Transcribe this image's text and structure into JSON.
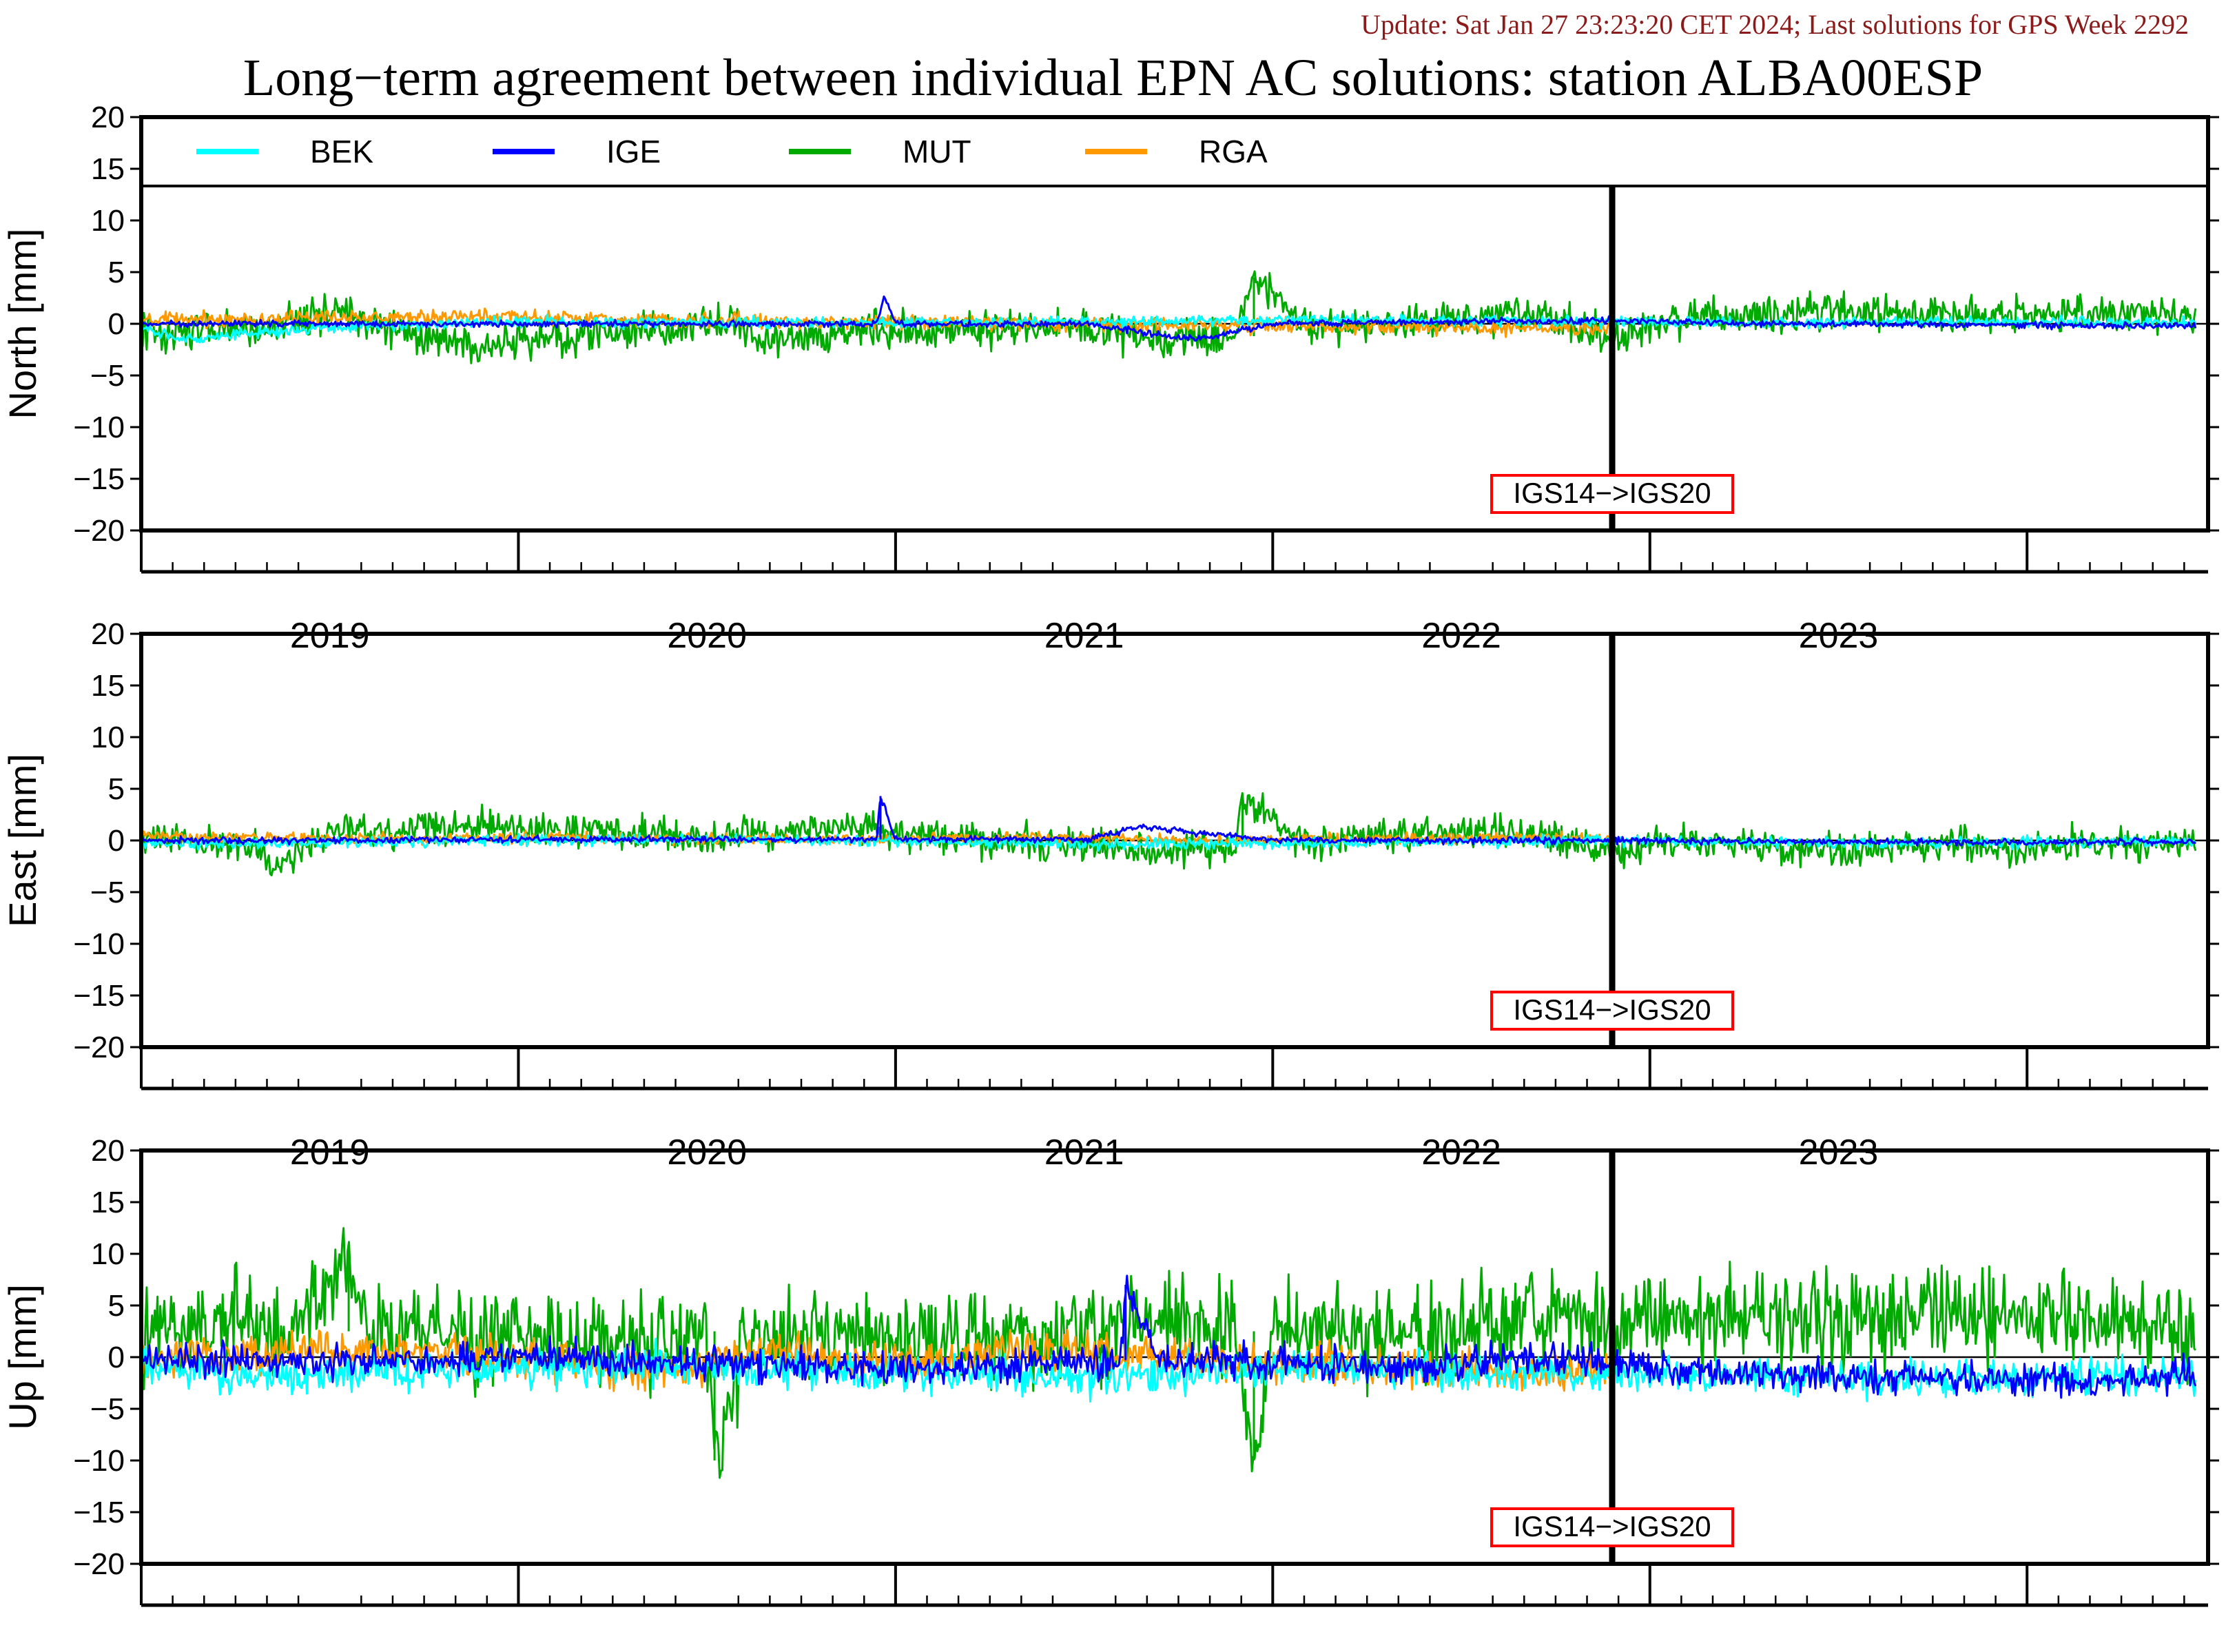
{
  "header": {
    "update_text": "Update: Sat Jan 27 23:23:20 CET 2024; Last solutions for GPS Week 2292",
    "title": "Long−term agreement between individual EPN AC solutions: station ALBA00ESP"
  },
  "colors": {
    "BEK": "#00ffff",
    "IGE": "#0000ff",
    "MUT": "#00aa00",
    "RGA": "#ff9900",
    "annotation_border": "#ff0000",
    "update_text": "#8b1a1a"
  },
  "chart_data": [
    {
      "type": "line",
      "panel": "north",
      "ylabel": "North [mm]",
      "ylim": [
        -20,
        20
      ],
      "yticks": [
        20,
        15,
        10,
        5,
        0,
        -5,
        -10,
        -15,
        -20
      ],
      "xlim": [
        2018.5,
        2023.98
      ],
      "xtick_labels": [
        "2019",
        "2020",
        "2021",
        "2022",
        "2023"
      ],
      "legend": {
        "placement": "top",
        "entries": [
          "BEK",
          "IGE",
          "MUT",
          "RGA"
        ]
      },
      "event": {
        "x": 2022.4,
        "label": "IGS14−>IGS20"
      },
      "series": [
        {
          "name": "BEK",
          "x": [
            2018.5,
            2018.6,
            2019.0,
            2019.5,
            2020.0,
            2020.5,
            2021.0,
            2021.5,
            2022.0,
            2022.4,
            2022.8,
            2023.4,
            2023.95
          ],
          "y": [
            -0.4,
            -1.5,
            -0.3,
            0.2,
            0.1,
            0.1,
            0.2,
            0.4,
            0.3,
            0.2,
            0.1,
            0.2,
            0.1
          ]
        },
        {
          "name": "IGE",
          "x": [
            2018.5,
            2019.0,
            2019.5,
            2020.0,
            2020.45,
            2020.47,
            2020.5,
            2021.0,
            2021.3,
            2021.5,
            2022.0,
            2022.4,
            2022.8,
            2023.4,
            2023.95
          ],
          "y": [
            0.0,
            0.0,
            0.0,
            0.0,
            0.0,
            2.7,
            0.0,
            0.0,
            -1.5,
            0.0,
            0.2,
            0.3,
            0.0,
            -0.1,
            -0.2
          ]
        },
        {
          "name": "MUT",
          "x": [
            2018.5,
            2018.8,
            2019.0,
            2019.2,
            2019.4,
            2019.6,
            2019.8,
            2020.0,
            2020.2,
            2020.4,
            2020.6,
            2020.8,
            2021.0,
            2021.2,
            2021.4,
            2021.45,
            2021.6,
            2021.8,
            2022.0,
            2022.2,
            2022.4,
            2022.6,
            2022.8,
            2023.0,
            2023.2,
            2023.4,
            2023.6,
            2023.8,
            2023.95
          ],
          "y": [
            -0.8,
            -0.7,
            1.5,
            -1.0,
            -2.5,
            -1.2,
            -0.8,
            0.2,
            -1.5,
            -0.5,
            -0.8,
            -0.3,
            -0.2,
            -1.6,
            -1.2,
            4.5,
            -0.5,
            -0.4,
            0.8,
            1.0,
            -1.5,
            0.8,
            1.0,
            1.2,
            1.0,
            0.8,
            0.9,
            1.1,
            0.7
          ]
        },
        {
          "name": "RGA",
          "x": [
            2018.5,
            2018.8,
            2019.0,
            2019.3,
            2019.6,
            2019.9,
            2020.2,
            2020.5,
            2020.8,
            2021.0,
            2021.3,
            2021.6,
            2021.9,
            2022.2,
            2022.4
          ],
          "y": [
            0.3,
            0.5,
            0.6,
            0.7,
            0.6,
            0.4,
            0.2,
            0.1,
            0.0,
            0.0,
            -0.1,
            -0.2,
            -0.3,
            -0.5,
            -0.3
          ]
        }
      ]
    },
    {
      "type": "line",
      "panel": "east",
      "ylabel": "East [mm]",
      "ylim": [
        -20,
        20
      ],
      "yticks": [
        20,
        15,
        10,
        5,
        0,
        -5,
        -10,
        -15,
        -20
      ],
      "xlim": [
        2018.5,
        2023.98
      ],
      "xtick_labels": [
        "2019",
        "2020",
        "2021",
        "2022",
        "2023"
      ],
      "event": {
        "x": 2022.4,
        "label": "IGS14−>IGS20"
      },
      "series": [
        {
          "name": "BEK",
          "x": [
            2018.5,
            2019.0,
            2019.5,
            2020.0,
            2020.5,
            2021.0,
            2021.5,
            2022.0,
            2022.4,
            2022.8,
            2023.4,
            2023.95
          ],
          "y": [
            -0.3,
            -0.2,
            0.0,
            0.1,
            -0.1,
            -0.4,
            -0.3,
            -0.1,
            0.0,
            -0.2,
            -0.2,
            -0.1
          ]
        },
        {
          "name": "IGE",
          "x": [
            2018.5,
            2019.0,
            2019.5,
            2020.0,
            2020.45,
            2020.46,
            2020.5,
            2021.0,
            2021.15,
            2021.5,
            2022.0,
            2022.4,
            2022.8,
            2023.4,
            2023.95
          ],
          "y": [
            0.0,
            0.0,
            0.1,
            0.1,
            0.1,
            4.3,
            0.1,
            0.1,
            1.3,
            0.0,
            0.0,
            0.0,
            -0.1,
            -0.2,
            -0.1
          ]
        },
        {
          "name": "MUT",
          "x": [
            2018.5,
            2018.8,
            2018.85,
            2019.0,
            2019.2,
            2019.4,
            2019.6,
            2019.8,
            2020.0,
            2020.2,
            2020.4,
            2020.6,
            2020.8,
            2021.0,
            2021.2,
            2021.4,
            2021.42,
            2021.6,
            2021.8,
            2022.0,
            2022.2,
            2022.4,
            2022.6,
            2022.8,
            2023.0,
            2023.2,
            2023.4,
            2023.6,
            2023.8,
            2023.95
          ],
          "y": [
            0.2,
            -0.3,
            -2.8,
            0.8,
            1.0,
            1.4,
            1.2,
            0.8,
            0.2,
            1.0,
            1.2,
            0.4,
            0.0,
            -0.5,
            -0.8,
            -0.6,
            3.9,
            -0.4,
            0.4,
            0.8,
            0.9,
            -1.2,
            0.3,
            -0.6,
            -0.7,
            -0.5,
            -0.6,
            -0.5,
            -0.4,
            -0.2
          ]
        },
        {
          "name": "RGA",
          "x": [
            2018.5,
            2018.8,
            2019.0,
            2019.3,
            2019.6,
            2019.9,
            2020.2,
            2020.5,
            2020.8,
            2021.0,
            2021.3,
            2021.6,
            2021.9,
            2022.2,
            2022.4
          ],
          "y": [
            0.4,
            0.3,
            0.1,
            0.2,
            0.3,
            0.2,
            0.1,
            0.2,
            0.3,
            0.2,
            0.0,
            0.1,
            0.2,
            0.3,
            0.2
          ]
        }
      ]
    },
    {
      "type": "line",
      "panel": "up",
      "ylabel": "Up [mm]",
      "ylim": [
        -20,
        20
      ],
      "yticks": [
        20,
        15,
        10,
        5,
        0,
        -5,
        -10,
        -15,
        -20
      ],
      "xlim": [
        2018.5,
        2023.98
      ],
      "xtick_labels": [
        "2019",
        "2020",
        "2021",
        "2022",
        "2023"
      ],
      "event": {
        "x": 2022.4,
        "label": "IGS14−>IGS20"
      },
      "series": [
        {
          "name": "BEK",
          "x": [
            2018.5,
            2018.8,
            2019.0,
            2019.3,
            2019.6,
            2019.9,
            2020.2,
            2020.5,
            2020.8,
            2021.0,
            2021.3,
            2021.6,
            2021.9,
            2022.2,
            2022.4,
            2022.7,
            2023.0,
            2023.3,
            2023.6,
            2023.95
          ],
          "y": [
            -1.0,
            -2.0,
            -1.5,
            -1.2,
            -1.0,
            -0.8,
            -1.3,
            -1.5,
            -1.6,
            -2.0,
            -1.5,
            -1.0,
            -1.2,
            -1.5,
            -1.5,
            -1.8,
            -2.0,
            -2.2,
            -2.0,
            -1.8
          ]
        },
        {
          "name": "IGE",
          "x": [
            2018.5,
            2018.8,
            2019.0,
            2019.3,
            2019.6,
            2019.9,
            2020.2,
            2020.5,
            2020.8,
            2021.0,
            2021.1,
            2021.11,
            2021.2,
            2021.5,
            2021.8,
            2022.0,
            2022.2,
            2022.4,
            2022.7,
            2023.0,
            2023.3,
            2023.6,
            2023.95
          ],
          "y": [
            -0.2,
            -0.3,
            -0.5,
            -0.2,
            0.0,
            -0.5,
            -0.8,
            -1.2,
            -0.8,
            -0.5,
            -0.3,
            7.0,
            -0.2,
            -0.5,
            -1.0,
            -0.5,
            -0.2,
            -0.5,
            -1.5,
            -1.8,
            -2.0,
            -2.2,
            -1.8
          ]
        },
        {
          "name": "MUT",
          "x": [
            2018.5,
            2018.7,
            2018.9,
            2019.05,
            2019.1,
            2019.3,
            2019.5,
            2019.7,
            2019.9,
            2020.0,
            2020.02,
            2020.1,
            2020.3,
            2020.5,
            2020.7,
            2020.9,
            2021.0,
            2021.2,
            2021.4,
            2021.45,
            2021.5,
            2021.7,
            2021.9,
            2022.0,
            2022.2,
            2022.4,
            2022.6,
            2022.8,
            2023.0,
            2023.2,
            2023.4,
            2023.6,
            2023.8,
            2023.95
          ],
          "y": [
            2.0,
            3.0,
            2.5,
            10.0,
            2.0,
            2.5,
            2.0,
            1.5,
            2.0,
            2.5,
            -10.0,
            1.5,
            1.8,
            1.0,
            1.5,
            2.0,
            2.5,
            3.0,
            2.5,
            -10.0,
            2.0,
            2.0,
            2.0,
            3.5,
            4.0,
            3.5,
            4.0,
            3.5,
            4.0,
            3.5,
            4.0,
            3.5,
            3.0,
            2.5
          ]
        },
        {
          "name": "RGA",
          "x": [
            2018.5,
            2018.8,
            2019.0,
            2019.3,
            2019.6,
            2019.9,
            2020.2,
            2020.4,
            2020.6,
            2020.8,
            2021.0,
            2021.3,
            2021.6,
            2021.9,
            2022.2,
            2022.4
          ],
          "y": [
            -0.5,
            0.2,
            0.8,
            0.5,
            -0.5,
            -1.2,
            0.5,
            -0.5,
            -0.2,
            1.0,
            0.5,
            0.0,
            -0.5,
            -1.0,
            -1.5,
            -1.5
          ]
        }
      ]
    }
  ]
}
